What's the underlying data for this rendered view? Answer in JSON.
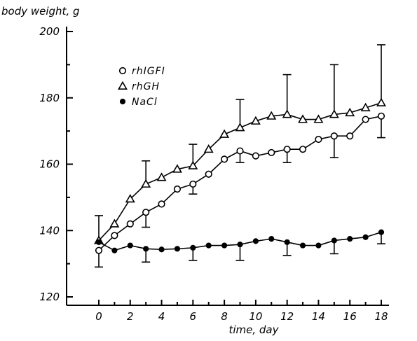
{
  "chart_data": {
    "type": "line",
    "title": "",
    "xlabel": "time, day",
    "ylabel": "body weight, g",
    "xlim": [
      0,
      18.5
    ],
    "ylim": [
      115,
      200
    ],
    "xticks": [
      0,
      2,
      4,
      6,
      8,
      10,
      12,
      14,
      16,
      18
    ],
    "yticks": [
      120,
      140,
      160,
      180,
      200
    ],
    "legend_position": "top-left",
    "grid": false,
    "series": [
      {
        "name": "rhIGFI",
        "marker": "open-circle",
        "x": [
          0,
          1,
          2,
          3,
          4,
          5,
          6,
          7,
          8,
          9,
          10,
          11,
          12,
          13,
          14,
          15,
          16,
          17,
          18
        ],
        "y": [
          134,
          138.5,
          142,
          145.5,
          148,
          152.5,
          154,
          157,
          161.5,
          164,
          162.5,
          163.5,
          164.5,
          164.5,
          167.5,
          168.5,
          168.5,
          173.5,
          174.5
        ],
        "errors": [
          {
            "x": 0,
            "y": 134,
            "lo": 129
          },
          {
            "x": 3,
            "y": 145.5,
            "lo": 141
          },
          {
            "x": 6,
            "y": 154,
            "lo": 151
          },
          {
            "x": 9,
            "y": 164,
            "lo": 160.5
          },
          {
            "x": 12,
            "y": 164.5,
            "lo": 160.5
          },
          {
            "x": 15,
            "y": 168.5,
            "lo": 162
          },
          {
            "x": 18,
            "y": 174.5,
            "lo": 168
          }
        ]
      },
      {
        "name": "rhGH",
        "marker": "open-triangle",
        "x": [
          0,
          1,
          2,
          3,
          4,
          5,
          6,
          7,
          8,
          9,
          10,
          11,
          12,
          13,
          14,
          15,
          16,
          17,
          18
        ],
        "y": [
          137,
          142,
          149.5,
          154,
          156,
          158.5,
          159.5,
          164.5,
          169,
          171,
          173,
          174.5,
          175,
          173.5,
          173.5,
          175,
          175.5,
          177,
          178.5
        ],
        "errors": [
          {
            "x": 0,
            "y": 137,
            "hi": 144.5
          },
          {
            "x": 3,
            "y": 154,
            "hi": 161
          },
          {
            "x": 6,
            "y": 159.5,
            "hi": 166
          },
          {
            "x": 9,
            "y": 171,
            "hi": 179.5
          },
          {
            "x": 12,
            "y": 175,
            "hi": 187
          },
          {
            "x": 15,
            "y": 175,
            "hi": 190
          },
          {
            "x": 18,
            "y": 178.5,
            "hi": 196
          }
        ]
      },
      {
        "name": "NaCl",
        "marker": "filled-circle",
        "x": [
          0,
          1,
          2,
          3,
          4,
          5,
          6,
          7,
          8,
          9,
          10,
          11,
          12,
          13,
          14,
          15,
          16,
          17,
          18
        ],
        "y": [
          136.5,
          134,
          135.5,
          134.5,
          134.3,
          134.5,
          134.8,
          135.5,
          135.5,
          135.8,
          136.8,
          137.5,
          136.5,
          135.5,
          135.5,
          137,
          137.5,
          138,
          139.5
        ],
        "errors": [
          {
            "x": 3,
            "y": 134.5,
            "lo": 130.5
          },
          {
            "x": 6,
            "y": 134.8,
            "lo": 131
          },
          {
            "x": 9,
            "y": 135.8,
            "lo": 131
          },
          {
            "x": 12,
            "y": 136.5,
            "lo": 132.5
          },
          {
            "x": 15,
            "y": 137,
            "lo": 133
          },
          {
            "x": 18,
            "y": 139.5,
            "lo": 136
          }
        ]
      }
    ]
  }
}
